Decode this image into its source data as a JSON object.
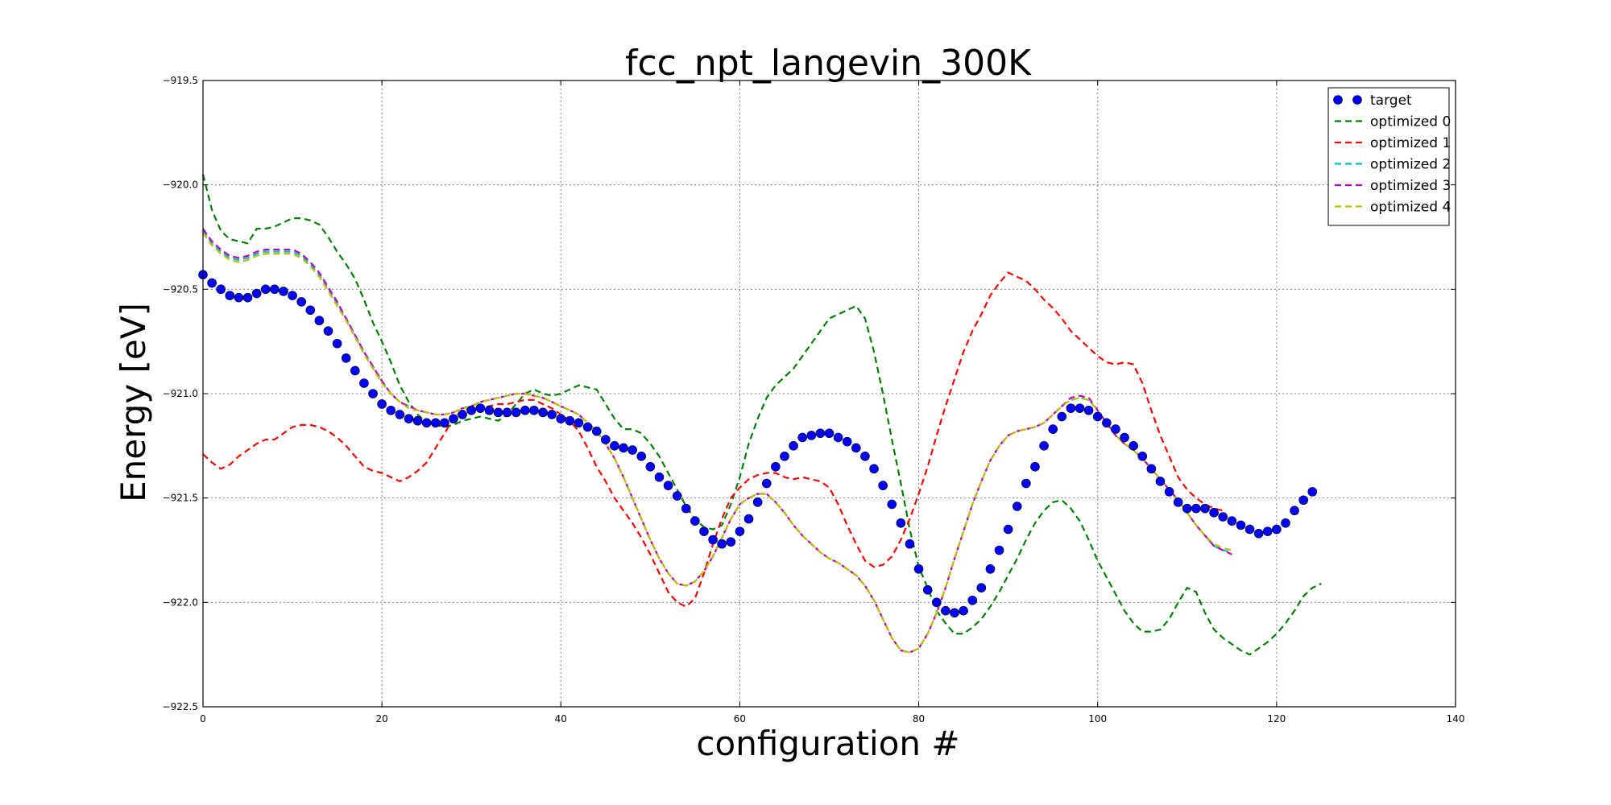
{
  "chart_data": {
    "type": "line",
    "title": "fcc_npt_langevin_300K",
    "xlabel": "configuration #",
    "ylabel": "Energy [eV]",
    "xlim": [
      0,
      140
    ],
    "ylim": [
      -922.5,
      -919.5
    ],
    "xticks": [
      0,
      20,
      40,
      60,
      80,
      100,
      120,
      140
    ],
    "yticks": [
      -922.5,
      -922.0,
      -921.5,
      -921.0,
      -920.5,
      -920.0,
      -919.5
    ],
    "xtick_labels": [
      "0",
      "20",
      "40",
      "60",
      "80",
      "100",
      "120",
      "140"
    ],
    "ytick_labels": [
      "−922.5",
      "−922.0",
      "−921.5",
      "−921.0",
      "−920.5",
      "−920.0",
      "−919.5"
    ],
    "grid": true,
    "legend_position": "top-right",
    "series": [
      {
        "name": "target",
        "style": "markers",
        "color": "#0000ff",
        "x_start": 0,
        "values": [
          -920.43,
          -920.47,
          -920.5,
          -920.53,
          -920.54,
          -920.54,
          -920.52,
          -920.5,
          -920.5,
          -920.51,
          -920.53,
          -920.56,
          -920.6,
          -920.65,
          -920.7,
          -920.76,
          -920.83,
          -920.89,
          -920.95,
          -921.0,
          -921.05,
          -921.08,
          -921.1,
          -921.12,
          -921.13,
          -921.14,
          -921.14,
          -921.14,
          -921.12,
          -921.1,
          -921.08,
          -921.07,
          -921.08,
          -921.09,
          -921.09,
          -921.09,
          -921.08,
          -921.08,
          -921.09,
          -921.1,
          -921.12,
          -921.13,
          -921.14,
          -921.16,
          -921.18,
          -921.22,
          -921.25,
          -921.26,
          -921.27,
          -921.3,
          -921.35,
          -921.4,
          -921.44,
          -921.49,
          -921.55,
          -921.61,
          -921.66,
          -921.7,
          -921.72,
          -921.71,
          -921.66,
          -921.6,
          -921.52,
          -921.43,
          -921.35,
          -921.3,
          -921.25,
          -921.21,
          -921.2,
          -921.19,
          -921.19,
          -921.21,
          -921.23,
          -921.26,
          -921.3,
          -921.36,
          -921.44,
          -921.53,
          -921.62,
          -921.72,
          -921.84,
          -921.94,
          -922.0,
          -922.04,
          -922.05,
          -922.04,
          -921.99,
          -921.93,
          -921.84,
          -921.75,
          -921.65,
          -921.54,
          -921.43,
          -921.35,
          -921.25,
          -921.17,
          -921.11,
          -921.07,
          -921.07,
          -921.08,
          -921.11,
          -921.14,
          -921.17,
          -921.21,
          -921.25,
          -921.3,
          -921.36,
          -921.42,
          -921.47,
          -921.52,
          -921.55,
          -921.55,
          -921.55,
          -921.57,
          -921.59,
          -921.61,
          -921.63,
          -921.65,
          -921.67,
          -921.66,
          -921.65,
          -921.62,
          -921.56,
          -921.51,
          -921.47
        ]
      },
      {
        "name": "optimized 0",
        "style": "dashed",
        "color": "#008000",
        "x_start": 0,
        "values": [
          -919.95,
          -920.12,
          -920.22,
          -920.26,
          -920.27,
          -920.28,
          -920.21,
          -920.21,
          -920.2,
          -920.18,
          -920.16,
          -920.16,
          -920.17,
          -920.19,
          -920.25,
          -920.32,
          -920.38,
          -920.45,
          -920.55,
          -920.66,
          -920.75,
          -920.85,
          -920.96,
          -921.04,
          -921.1,
          -921.14,
          -921.15,
          -921.16,
          -921.15,
          -921.13,
          -921.12,
          -921.11,
          -921.12,
          -921.13,
          -921.1,
          -921.05,
          -921.0,
          -920.98,
          -921.0,
          -921.01,
          -921.0,
          -920.98,
          -920.96,
          -920.97,
          -920.98,
          -921.05,
          -921.12,
          -921.17,
          -921.17,
          -921.19,
          -921.24,
          -921.3,
          -921.38,
          -921.46,
          -921.54,
          -921.6,
          -921.64,
          -921.65,
          -921.63,
          -921.53,
          -921.4,
          -921.24,
          -921.12,
          -921.02,
          -920.96,
          -920.92,
          -920.88,
          -920.82,
          -920.76,
          -920.7,
          -920.64,
          -920.62,
          -920.6,
          -920.58,
          -920.64,
          -920.8,
          -921.0,
          -921.22,
          -921.43,
          -921.65,
          -921.83,
          -921.93,
          -922.04,
          -922.1,
          -922.15,
          -922.15,
          -922.12,
          -922.08,
          -922.02,
          -921.95,
          -921.87,
          -921.79,
          -921.7,
          -921.62,
          -921.56,
          -921.52,
          -921.51,
          -921.55,
          -921.61,
          -921.7,
          -921.8,
          -921.88,
          -921.96,
          -922.04,
          -922.1,
          -922.14,
          -922.14,
          -922.13,
          -922.08,
          -922.0,
          -921.93,
          -921.95,
          -922.05,
          -922.13,
          -922.17,
          -922.2,
          -922.23,
          -922.25,
          -922.22,
          -922.19,
          -922.15,
          -922.1,
          -922.04,
          -921.97,
          -921.93,
          -921.91
        ]
      },
      {
        "name": "optimized 1",
        "style": "dashed",
        "color": "#ff0000",
        "x_start": 0,
        "values": [
          -921.29,
          -921.33,
          -921.36,
          -921.34,
          -921.3,
          -921.27,
          -921.24,
          -921.22,
          -921.22,
          -921.19,
          -921.16,
          -921.15,
          -921.15,
          -921.16,
          -921.18,
          -921.21,
          -921.25,
          -921.3,
          -921.35,
          -921.37,
          -921.38,
          -921.4,
          -921.42,
          -921.4,
          -921.37,
          -921.33,
          -921.26,
          -921.19,
          -921.12,
          -921.08,
          -921.07,
          -921.07,
          -921.06,
          -921.05,
          -921.05,
          -921.04,
          -921.03,
          -921.03,
          -921.05,
          -921.07,
          -921.1,
          -921.13,
          -921.18,
          -921.26,
          -921.35,
          -921.42,
          -921.5,
          -921.56,
          -921.62,
          -921.69,
          -921.77,
          -921.86,
          -921.95,
          -922.0,
          -922.02,
          -921.98,
          -921.86,
          -921.72,
          -921.6,
          -921.5,
          -921.45,
          -921.41,
          -921.39,
          -921.38,
          -921.38,
          -921.4,
          -921.41,
          -921.4,
          -921.41,
          -921.42,
          -921.45,
          -921.53,
          -921.63,
          -921.72,
          -921.8,
          -921.83,
          -921.82,
          -921.78,
          -921.7,
          -921.6,
          -921.48,
          -921.35,
          -921.2,
          -921.06,
          -920.93,
          -920.8,
          -920.7,
          -920.62,
          -920.53,
          -920.47,
          -920.42,
          -920.44,
          -920.46,
          -920.5,
          -920.55,
          -920.59,
          -920.64,
          -920.7,
          -920.74,
          -920.78,
          -920.82,
          -920.85,
          -920.86,
          -920.85,
          -920.86,
          -920.95,
          -921.08,
          -921.2,
          -921.3,
          -921.4,
          -921.46,
          -921.5,
          -921.53,
          -921.55,
          -921.56
        ]
      },
      {
        "name": "optimized 2",
        "style": "dashed",
        "color": "#00bfbf",
        "x_start": 0,
        "values": [
          -920.22,
          -920.28,
          -920.32,
          -920.35,
          -920.36,
          -920.35,
          -920.33,
          -920.32,
          -920.32,
          -920.32,
          -920.32,
          -920.34,
          -920.38,
          -920.43,
          -920.5,
          -920.57,
          -920.64,
          -920.72,
          -920.8,
          -920.87,
          -920.94,
          -921.0,
          -921.04,
          -921.06,
          -921.08,
          -921.09,
          -921.1,
          -921.1,
          -921.09,
          -921.07,
          -921.06,
          -921.04,
          -921.03,
          -921.02,
          -921.01,
          -921.0,
          -921.0,
          -921.01,
          -921.02,
          -921.04,
          -921.06,
          -921.08,
          -921.1,
          -921.14,
          -921.18,
          -921.24,
          -921.31,
          -921.4,
          -921.5,
          -921.6,
          -921.7,
          -921.79,
          -921.86,
          -921.91,
          -921.92,
          -921.9,
          -921.85,
          -921.78,
          -921.69,
          -921.6,
          -921.53,
          -921.5,
          -921.48,
          -921.48,
          -921.52,
          -921.57,
          -921.63,
          -921.68,
          -921.72,
          -921.76,
          -921.79,
          -921.81,
          -921.84,
          -921.87,
          -921.92,
          -921.99,
          -922.08,
          -922.17,
          -922.23,
          -922.24,
          -922.22,
          -922.15,
          -922.05,
          -921.93,
          -921.79,
          -921.66,
          -921.53,
          -921.42,
          -921.32,
          -921.25,
          -921.2,
          -921.18,
          -921.17,
          -921.16,
          -921.14,
          -921.1,
          -921.06,
          -921.03,
          -921.02,
          -921.03,
          -921.08,
          -921.14,
          -921.2,
          -921.24,
          -921.27,
          -921.31,
          -921.36,
          -921.41,
          -921.46,
          -921.51,
          -921.57,
          -921.63,
          -921.68,
          -921.73,
          -921.75,
          -921.76
        ]
      },
      {
        "name": "optimized 3",
        "style": "dashed",
        "color": "#bf00bf",
        "x_start": 0,
        "values": [
          -920.21,
          -920.27,
          -920.31,
          -920.34,
          -920.35,
          -920.34,
          -920.32,
          -920.31,
          -920.31,
          -920.31,
          -920.31,
          -920.33,
          -920.37,
          -920.42,
          -920.49,
          -920.56,
          -920.64,
          -920.72,
          -920.8,
          -920.87,
          -920.94,
          -921.0,
          -921.04,
          -921.06,
          -921.08,
          -921.09,
          -921.1,
          -921.1,
          -921.09,
          -921.07,
          -921.06,
          -921.04,
          -921.03,
          -921.02,
          -921.01,
          -921.0,
          -921.0,
          -921.01,
          -921.02,
          -921.04,
          -921.06,
          -921.08,
          -921.1,
          -921.14,
          -921.18,
          -921.24,
          -921.31,
          -921.4,
          -921.5,
          -921.6,
          -921.7,
          -921.79,
          -921.86,
          -921.91,
          -921.92,
          -921.9,
          -921.85,
          -921.78,
          -921.69,
          -921.6,
          -921.53,
          -921.5,
          -921.48,
          -921.48,
          -921.52,
          -921.57,
          -921.63,
          -921.68,
          -921.72,
          -921.76,
          -921.79,
          -921.81,
          -921.84,
          -921.87,
          -921.92,
          -921.99,
          -922.08,
          -922.17,
          -922.23,
          -922.24,
          -922.22,
          -922.15,
          -922.05,
          -921.93,
          -921.79,
          -921.66,
          -921.53,
          -921.42,
          -921.32,
          -921.25,
          -921.2,
          -921.18,
          -921.17,
          -921.16,
          -921.14,
          -921.1,
          -921.06,
          -921.02,
          -921.01,
          -921.02,
          -921.08,
          -921.14,
          -921.2,
          -921.24,
          -921.27,
          -921.31,
          -921.36,
          -921.41,
          -921.46,
          -921.51,
          -921.57,
          -921.63,
          -921.68,
          -921.73,
          -921.75,
          -921.77
        ]
      },
      {
        "name": "optimized 4",
        "style": "dashed",
        "color": "#bfbf00",
        "x_start": 0,
        "values": [
          -920.23,
          -920.29,
          -920.33,
          -920.36,
          -920.37,
          -920.36,
          -920.34,
          -920.33,
          -920.33,
          -920.33,
          -920.33,
          -920.35,
          -920.39,
          -920.44,
          -920.51,
          -920.58,
          -920.65,
          -920.73,
          -920.81,
          -920.88,
          -920.95,
          -921.0,
          -921.04,
          -921.07,
          -921.08,
          -921.09,
          -921.1,
          -921.1,
          -921.09,
          -921.07,
          -921.06,
          -921.04,
          -921.03,
          -921.02,
          -921.01,
          -921.0,
          -921.0,
          -921.01,
          -921.02,
          -921.04,
          -921.06,
          -921.08,
          -921.1,
          -921.14,
          -921.18,
          -921.24,
          -921.31,
          -921.4,
          -921.5,
          -921.6,
          -921.7,
          -921.79,
          -921.86,
          -921.91,
          -921.92,
          -921.9,
          -921.85,
          -921.78,
          -921.69,
          -921.6,
          -921.53,
          -921.5,
          -921.48,
          -921.48,
          -921.52,
          -921.57,
          -921.63,
          -921.68,
          -921.72,
          -921.76,
          -921.79,
          -921.81,
          -921.84,
          -921.87,
          -921.92,
          -921.99,
          -922.08,
          -922.17,
          -922.23,
          -922.24,
          -922.22,
          -922.15,
          -922.05,
          -921.93,
          -921.79,
          -921.66,
          -921.53,
          -921.42,
          -921.32,
          -921.25,
          -921.2,
          -921.18,
          -921.17,
          -921.16,
          -921.14,
          -921.1,
          -921.06,
          -921.03,
          -921.02,
          -921.03,
          -921.08,
          -921.14,
          -921.2,
          -921.24,
          -921.27,
          -921.31,
          -921.36,
          -921.41,
          -921.46,
          -921.51,
          -921.57,
          -921.63,
          -921.68,
          -921.72,
          -921.74,
          -921.75
        ]
      }
    ]
  }
}
